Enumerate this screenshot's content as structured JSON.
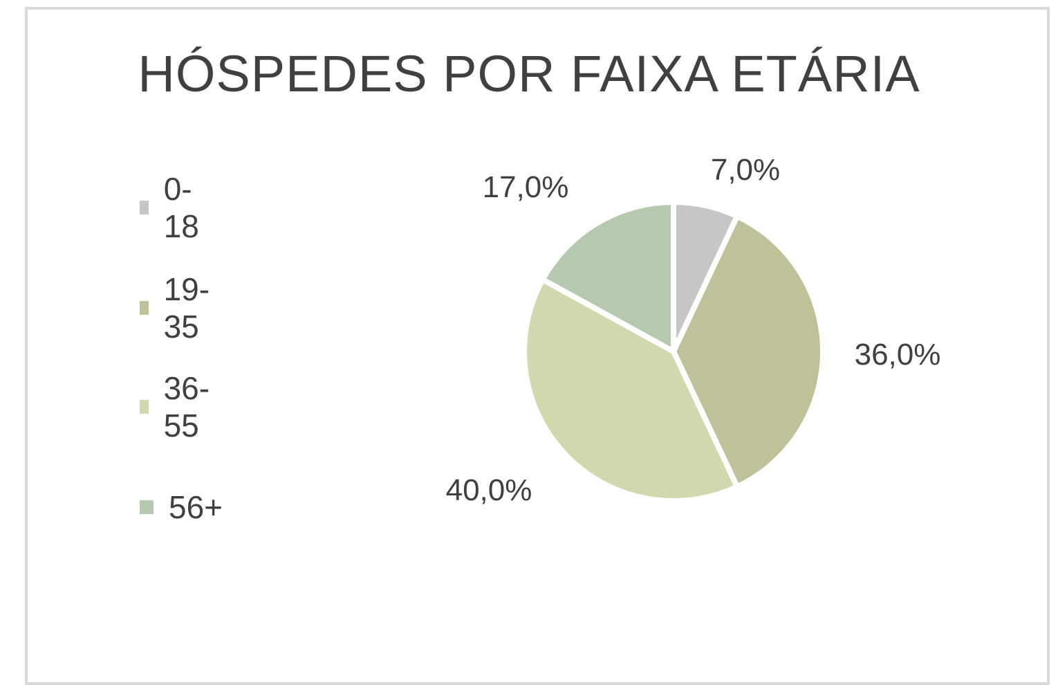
{
  "chart_data": {
    "type": "pie",
    "title": "HÓSPEDES POR FAIXA ETÁRIA",
    "categories": [
      "0-18",
      "19-35",
      "36-55",
      "56+"
    ],
    "values": [
      7.0,
      36.0,
      40.0,
      17.0
    ],
    "labels": [
      "7,0%",
      "36,0%",
      "40,0%",
      "17,0%"
    ],
    "colors": [
      "#c6c6c6",
      "#c1c199",
      "#d0d8ae",
      "#b6c9ae"
    ],
    "legend_position": "left",
    "start_angle": "top, clockwise"
  }
}
